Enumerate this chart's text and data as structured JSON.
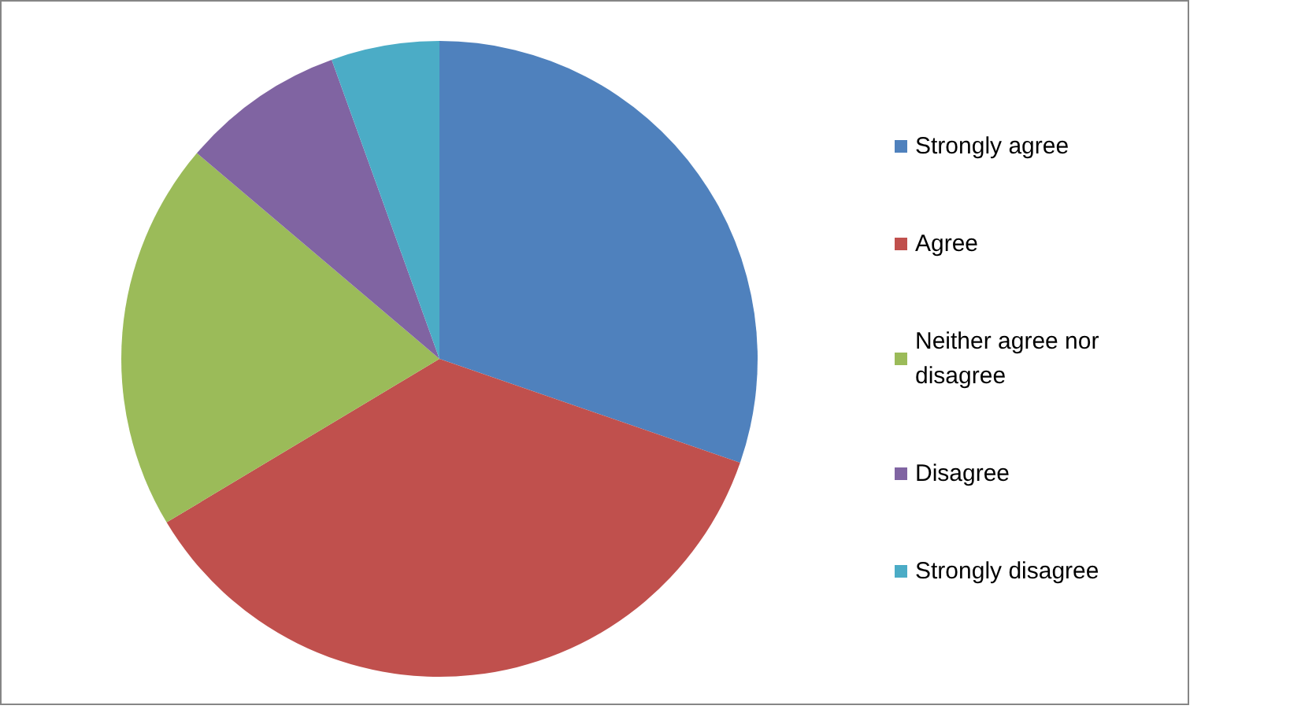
{
  "chart_data": {
    "type": "pie",
    "categories": [
      "Strongly agree",
      "Agree",
      "Neither agree nor disagree",
      "Disagree",
      "Strongly disagree"
    ],
    "values": [
      30.3,
      36.1,
      19.8,
      8.3,
      5.5
    ],
    "colors": [
      "#4f81bd",
      "#c0504d",
      "#9bbb59",
      "#8064a2",
      "#4bacc6"
    ],
    "legend": "right"
  }
}
